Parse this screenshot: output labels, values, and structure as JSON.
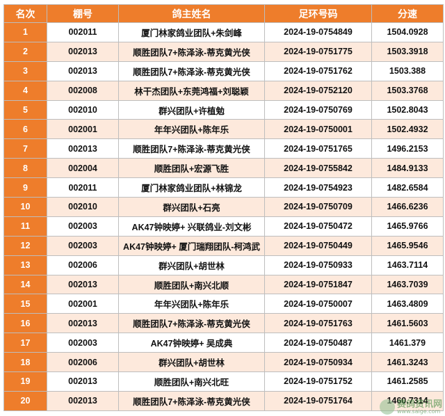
{
  "table": {
    "headers": [
      "名次",
      "棚号",
      "鸽主姓名",
      "足环号码",
      "分速"
    ],
    "rows": [
      [
        "1",
        "002011",
        "厦门林家鸽业团队+朱剑峰",
        "2024-19-0754849",
        "1504.0928"
      ],
      [
        "2",
        "002013",
        "顺胜团队7+陈泽泳-蒂克黄光侠",
        "2024-19-0751775",
        "1503.3918"
      ],
      [
        "3",
        "002013",
        "顺胜团队7+陈泽泳-蒂克黄光侠",
        "2024-19-0751762",
        "1503.388"
      ],
      [
        "4",
        "002008",
        "林干杰团队+东莞鸿福+刘聪颖",
        "2024-19-0752120",
        "1503.3768"
      ],
      [
        "5",
        "002010",
        "群兴团队+许植勉",
        "2024-19-0750769",
        "1502.8043"
      ],
      [
        "6",
        "002001",
        "年年兴团队+陈年乐",
        "2024-19-0750001",
        "1502.4932"
      ],
      [
        "7",
        "002013",
        "顺胜团队7+陈泽泳-蒂克黄光侠",
        "2024-19-0751765",
        "1496.2153"
      ],
      [
        "8",
        "002004",
        "顺胜团队+宏源飞胜",
        "2024-19-0755842",
        "1484.9133"
      ],
      [
        "9",
        "002011",
        "厦门林家鸽业团队+林锦龙",
        "2024-19-0754923",
        "1482.6584"
      ],
      [
        "10",
        "002010",
        "群兴团队+石亮",
        "2024-19-0750709",
        "1466.6236"
      ],
      [
        "11",
        "002003",
        "AK47钟映婷+ 兴联鸽业-刘文彬",
        "2024-19-0750472",
        "1465.9766"
      ],
      [
        "12",
        "002003",
        "AK47钟映婷+ 厦门瑞翔团队-柯鸿武",
        "2024-19-0750449",
        "1465.9546"
      ],
      [
        "13",
        "002006",
        "群兴团队+胡世林",
        "2024-19-0750933",
        "1463.7114"
      ],
      [
        "14",
        "002013",
        "顺胜团队+南兴北顺",
        "2024-19-0751847",
        "1463.7039"
      ],
      [
        "15",
        "002001",
        "年年兴团队+陈年乐",
        "2024-19-0750007",
        "1463.4809"
      ],
      [
        "16",
        "002013",
        "顺胜团队7+陈泽泳-蒂克黄光侠",
        "2024-19-0751763",
        "1461.5603"
      ],
      [
        "17",
        "002003",
        "AK47钟映婷+ 吴成典",
        "2024-19-0750487",
        "1461.379"
      ],
      [
        "18",
        "002006",
        "群兴团队+胡世林",
        "2024-19-0750934",
        "1461.3243"
      ],
      [
        "19",
        "002013",
        "顺胜团队+南兴北旺",
        "2024-19-0751752",
        "1461.2585"
      ],
      [
        "20",
        "002013",
        "顺胜团队7+陈泽泳-蒂克黄光侠",
        "2024-19-0751764",
        "1460.7314"
      ]
    ]
  },
  "watermark": {
    "text": "赛鸽资讯网",
    "sub": "www.saige.com"
  },
  "colors": {
    "header_bg": "#ee7d2b",
    "rank_bg": "#ee7d2b",
    "alt_row_bg": "#fde9dc",
    "border": "#bdbdbd"
  }
}
